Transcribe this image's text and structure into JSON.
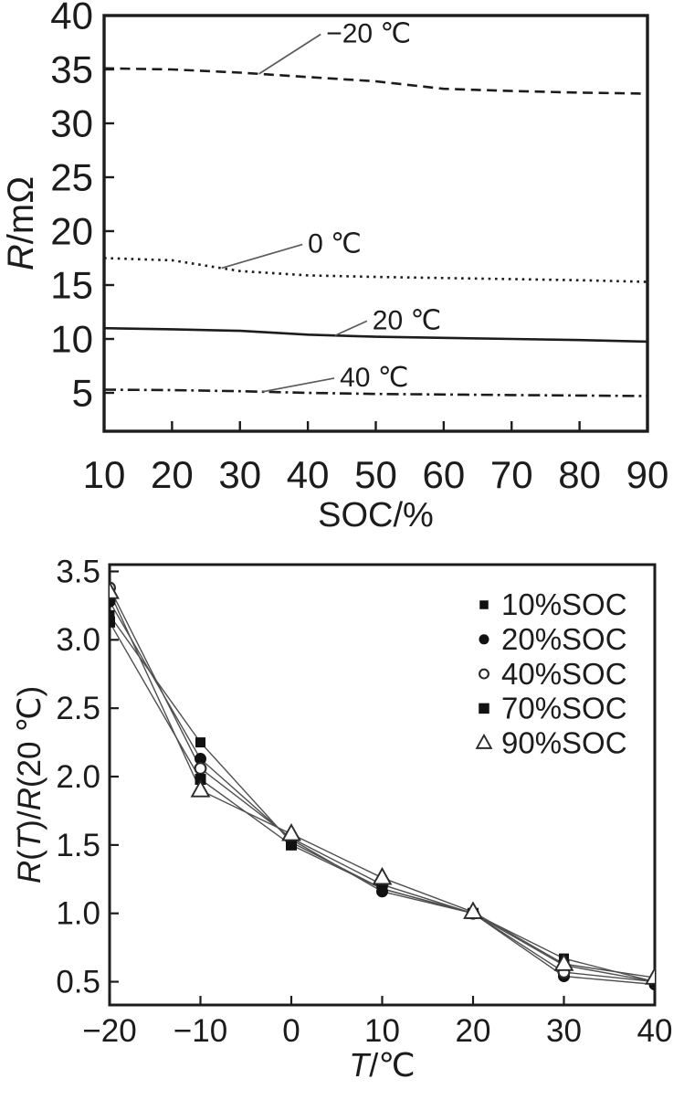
{
  "figure": {
    "background": "#ffffff"
  },
  "colors": {
    "axis": "#1c1c1c",
    "series_line_gray": "#4f4f4f",
    "leader_line": "#5a5a5a",
    "marker_fill": "#111111",
    "open_marker_stroke": "#2a2a2a",
    "open_marker_fill": "#ffffff",
    "background": "#ffffff"
  },
  "chart_data": [
    {
      "id": "resistance-vs-soc",
      "type": "line",
      "title": "",
      "xlabel_parts": [
        {
          "text": "SOC/%",
          "italic": false
        }
      ],
      "ylabel_parts": [
        {
          "text": "R",
          "italic": true
        },
        {
          "text": "/mΩ",
          "italic": false
        }
      ],
      "x": [
        10,
        20,
        30,
        40,
        50,
        60,
        70,
        80,
        90
      ],
      "xlim": [
        10,
        90
      ],
      "ylim": [
        1.44,
        40
      ],
      "xticks": [
        10,
        20,
        30,
        40,
        50,
        60,
        70,
        80,
        90
      ],
      "xticklabels": [
        "10",
        "20",
        "30",
        "40",
        "50",
        "60",
        "70",
        "80",
        "90"
      ],
      "yticks": [
        5,
        10,
        15,
        20,
        25,
        30,
        35,
        40
      ],
      "yticklabels": [
        "5",
        "10",
        "15",
        "20",
        "25",
        "30",
        "35",
        "40"
      ],
      "grid": false,
      "legend": null,
      "series": [
        {
          "name": "−20 ℃",
          "line_style": "dashed",
          "marker": null,
          "values": [
            35.1,
            35.0,
            34.7,
            34.3,
            33.9,
            33.2,
            33.0,
            32.85,
            32.75
          ]
        },
        {
          "name": "0 ℃",
          "line_style": "dotted",
          "marker": null,
          "values": [
            17.5,
            17.3,
            16.3,
            15.9,
            15.75,
            15.65,
            15.55,
            15.45,
            15.3
          ]
        },
        {
          "name": "20 ℃",
          "line_style": "solid",
          "marker": null,
          "values": [
            11.0,
            10.9,
            10.75,
            10.4,
            10.2,
            10.1,
            10.0,
            9.9,
            9.75
          ]
        },
        {
          "name": "40 ℃",
          "line_style": "dashdot",
          "marker": null,
          "values": [
            5.3,
            5.25,
            5.15,
            5.0,
            4.9,
            4.85,
            4.8,
            4.75,
            4.7
          ]
        }
      ],
      "annotations": [
        {
          "text": "−20 ℃",
          "series": 0,
          "attach_x": 32.8,
          "text_x": 42.7,
          "text_y": 37.5
        },
        {
          "text": "0 ℃",
          "series": 1,
          "attach_x": 27.3,
          "text_x": 40.0,
          "text_y": 18.0
        },
        {
          "text": "20 ℃",
          "series": 2,
          "attach_x": 44.0,
          "text_x": 49.5,
          "text_y": 10.9
        },
        {
          "text": "40 ℃",
          "series": 3,
          "attach_x": 33.3,
          "text_x": 44.7,
          "text_y": 5.6
        }
      ]
    },
    {
      "id": "resistance-ratio-vs-temperature",
      "type": "line",
      "title": "",
      "xlabel_parts": [
        {
          "text": "T",
          "italic": true
        },
        {
          "text": "/℃",
          "italic": false
        }
      ],
      "ylabel_parts": [
        {
          "text": "R",
          "italic": true
        },
        {
          "text": "(",
          "italic": false
        },
        {
          "text": "T",
          "italic": true
        },
        {
          "text": ")/",
          "italic": false
        },
        {
          "text": "R",
          "italic": true
        },
        {
          "text": "(20 ℃)",
          "italic": false
        }
      ],
      "x": [
        -20,
        -10,
        0,
        10,
        20,
        30,
        40
      ],
      "xlim": [
        -20,
        40
      ],
      "ylim": [
        0.33,
        3.55
      ],
      "xticks": [
        -20,
        -10,
        0,
        10,
        20,
        30,
        40
      ],
      "xticklabels": [
        "−20",
        "−10",
        "0",
        "10",
        "20",
        "30",
        "40"
      ],
      "yticks": [
        0.5,
        1.0,
        1.5,
        2.0,
        2.5,
        3.0,
        3.5
      ],
      "yticklabels": [
        "0.5",
        "1.0",
        "1.5",
        "2.0",
        "2.5",
        "3.0",
        "3.5"
      ],
      "grid": false,
      "legend": {
        "position": "top-right"
      },
      "series": [
        {
          "name": "10%SOC",
          "marker": "square-filled",
          "marker_size": 11,
          "legend_marker_size": 9.5,
          "values": [
            3.18,
            2.25,
            1.52,
            1.18,
            1.0,
            0.67,
            0.5
          ]
        },
        {
          "name": "20%SOC",
          "marker": "circle-filled",
          "marker_size": 13,
          "legend_marker_size": 11,
          "values": [
            3.28,
            2.13,
            1.54,
            1.16,
            1.0,
            0.54,
            0.48
          ]
        },
        {
          "name": "40%SOC",
          "marker": "circle-open",
          "marker_size": 13,
          "legend_marker_size": 11,
          "values": [
            3.38,
            2.06,
            1.55,
            1.21,
            1.0,
            0.57,
            0.5
          ]
        },
        {
          "name": "70%SOC",
          "marker": "square-filled",
          "marker_size": 12,
          "legend_marker_size": 11.5,
          "values": [
            3.13,
            1.98,
            1.5,
            1.18,
            1.0,
            0.62,
            0.5
          ]
        },
        {
          "name": "90%SOC",
          "marker": "triangle-open",
          "marker_size": 16,
          "legend_marker_size": 13.5,
          "values": [
            3.35,
            1.9,
            1.58,
            1.26,
            1.01,
            0.63,
            0.53
          ]
        }
      ],
      "annotations": []
    }
  ]
}
